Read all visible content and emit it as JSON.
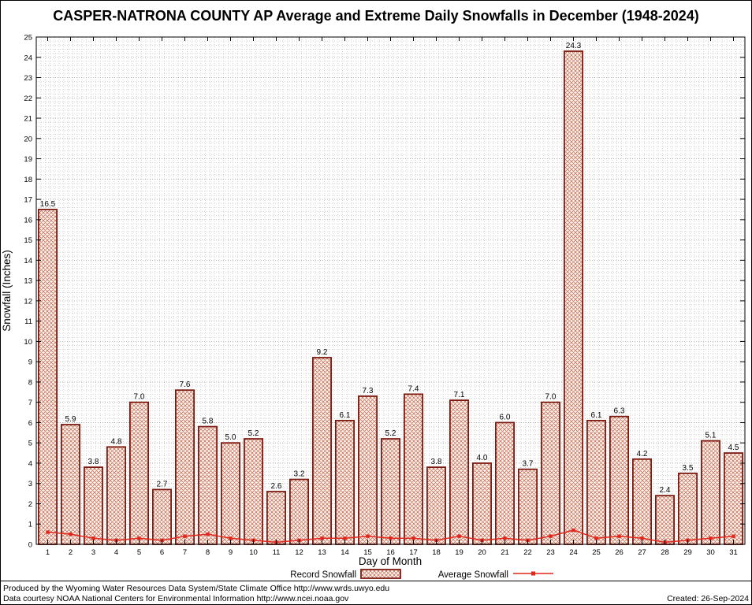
{
  "chart_data": {
    "type": "bar",
    "title": "CASPER-NATRONA COUNTY AP Average and Extreme Daily Snowfalls in December (1948-2024)",
    "xlabel": "Day of Month",
    "ylabel": "Snowfall (Inches)",
    "ylim": [
      0,
      25
    ],
    "ytick_interval": 1,
    "grid": true,
    "legend_position": "bottom",
    "categories": [
      1,
      2,
      3,
      4,
      5,
      6,
      7,
      8,
      9,
      10,
      11,
      12,
      13,
      14,
      15,
      16,
      17,
      18,
      19,
      20,
      21,
      22,
      23,
      24,
      25,
      26,
      27,
      28,
      29,
      30,
      31
    ],
    "series": [
      {
        "name": "Record Snowfall",
        "type": "bar",
        "values": [
          16.5,
          5.9,
          3.8,
          4.8,
          7.0,
          2.7,
          7.6,
          5.8,
          5.0,
          5.2,
          2.6,
          3.2,
          9.2,
          6.1,
          7.3,
          5.2,
          7.4,
          3.8,
          7.1,
          4.0,
          6.0,
          3.7,
          7.0,
          24.3,
          6.1,
          6.3,
          4.2,
          2.4,
          3.5,
          5.1,
          4.5
        ]
      },
      {
        "name": "Average Snowfall",
        "type": "line",
        "values": [
          0.6,
          0.5,
          0.3,
          0.2,
          0.3,
          0.2,
          0.4,
          0.5,
          0.3,
          0.2,
          0.1,
          0.2,
          0.3,
          0.3,
          0.4,
          0.3,
          0.3,
          0.2,
          0.4,
          0.2,
          0.3,
          0.2,
          0.4,
          0.7,
          0.3,
          0.4,
          0.3,
          0.1,
          0.2,
          0.3,
          0.4
        ]
      }
    ]
  },
  "colors": {
    "bar_edge": "#7d1a10",
    "bar_hatch": "#c2624a",
    "bar_fill_bg": "#fbf4ee",
    "line": "#e1261c",
    "grid_minor": "#c8c8c8",
    "grid_major": "#a0a0a0"
  },
  "footer": {
    "line1": "Produced by the Wyoming Water Resources Data System/State Climate Office http://www.wrds.uwyo.edu",
    "line2": "Data courtesy NOAA National Centers for Environmental Information http://www.ncei.noaa.gov",
    "created": "Created: 26-Sep-2024"
  }
}
